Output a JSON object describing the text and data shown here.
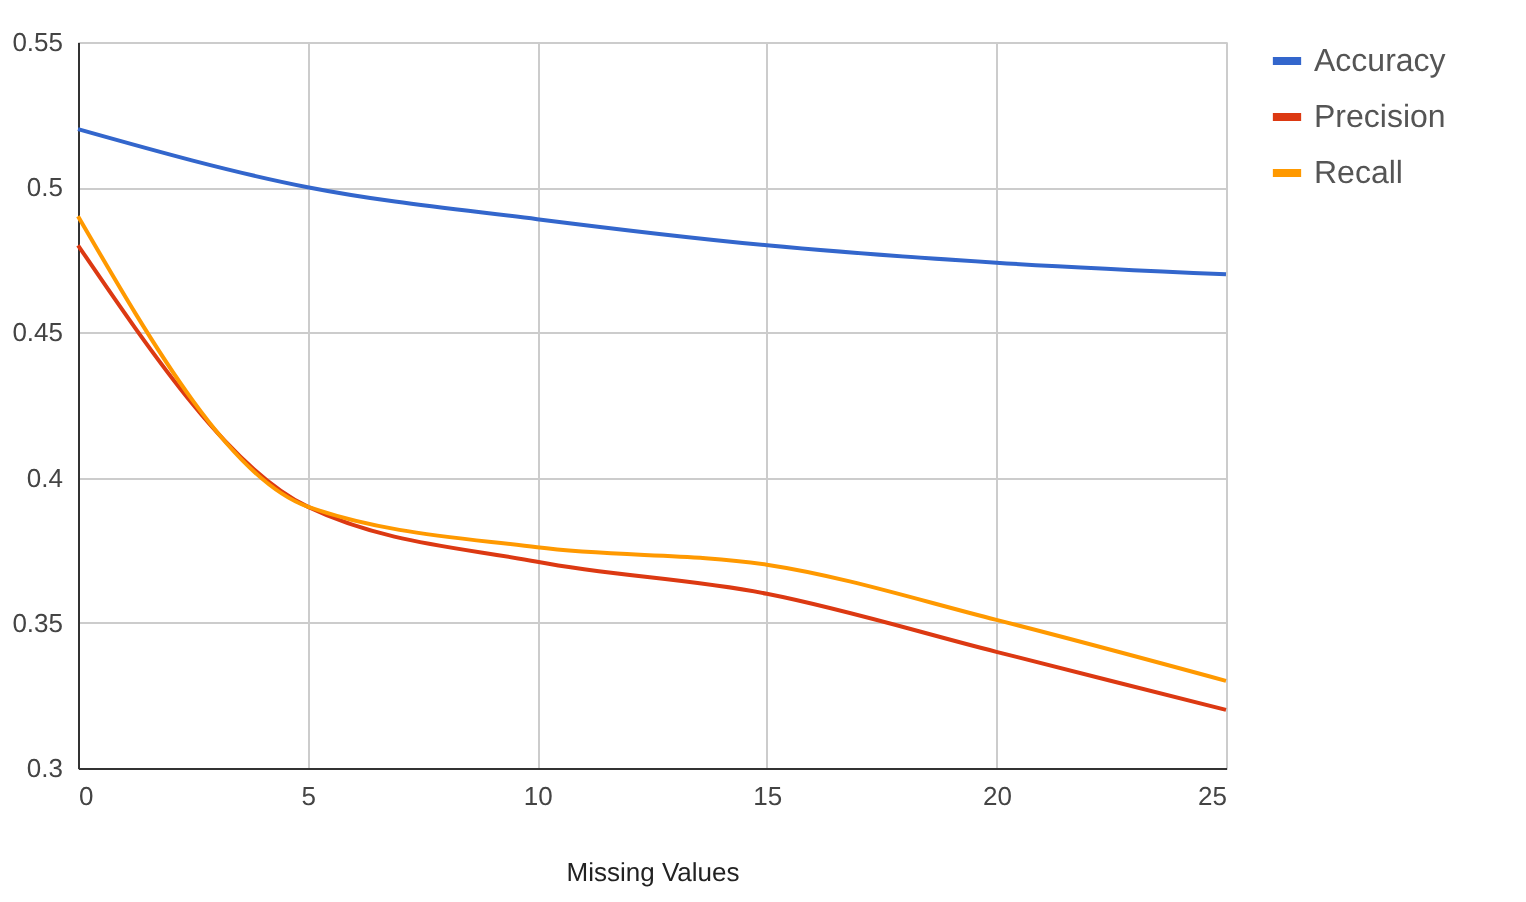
{
  "chart_data": {
    "type": "line",
    "xlabel": "Missing Values",
    "x": [
      0,
      5,
      10,
      15,
      20,
      25
    ],
    "series": [
      {
        "name": "Accuracy",
        "color": "#3366cc",
        "values": [
          0.52,
          0.5,
          0.489,
          0.48,
          0.474,
          0.47
        ]
      },
      {
        "name": "Precision",
        "color": "#dc3912",
        "values": [
          0.48,
          0.39,
          0.371,
          0.36,
          0.34,
          0.32
        ]
      },
      {
        "name": "Recall",
        "color": "#ff9900",
        "values": [
          0.49,
          0.39,
          0.376,
          0.37,
          0.351,
          0.33
        ]
      }
    ],
    "xlim": [
      0,
      25
    ],
    "xticks": [
      0,
      5,
      10,
      15,
      20,
      25
    ],
    "ylim": [
      0.3,
      0.55
    ],
    "yticks": [
      0.3,
      0.35,
      0.4,
      0.45,
      0.5,
      0.55
    ],
    "grid": true,
    "legend": "top right",
    "marker": "none",
    "line_style": "solid"
  }
}
